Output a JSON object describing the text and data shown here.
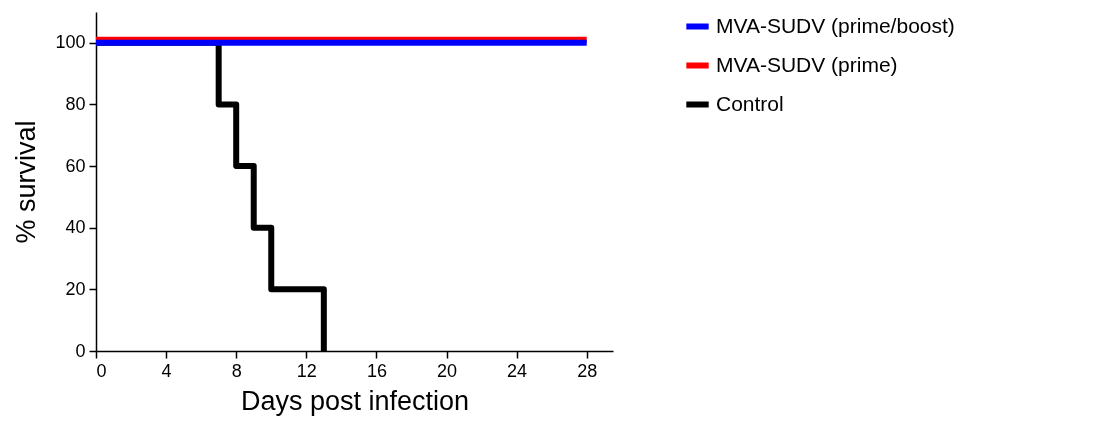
{
  "chart_data": {
    "type": "step",
    "xlabel": "Days post infection",
    "ylabel": "% survival",
    "xlim": [
      0,
      29.5
    ],
    "xticks": [
      0,
      4,
      8,
      12,
      16,
      20,
      24,
      28
    ],
    "ylim": [
      0,
      110
    ],
    "yticks": [
      0,
      20,
      40,
      60,
      80,
      100
    ],
    "grid": false,
    "legend": "top right",
    "line_style": "solid",
    "marker": "none",
    "series": [
      {
        "name": "MVA-SUDV (prime/boost)",
        "color": "#0000ff",
        "x": [
          0,
          28
        ],
        "values": [
          100,
          100
        ]
      },
      {
        "name": "MVA-SUDV (prime)",
        "color": "#ff0000",
        "x": [
          0,
          28
        ],
        "values": [
          101,
          101
        ]
      },
      {
        "name": "Control",
        "color": "#000000",
        "x": [
          0,
          7,
          8,
          9,
          10,
          13
        ],
        "values": [
          100,
          80,
          60,
          40,
          20,
          0
        ]
      }
    ]
  }
}
